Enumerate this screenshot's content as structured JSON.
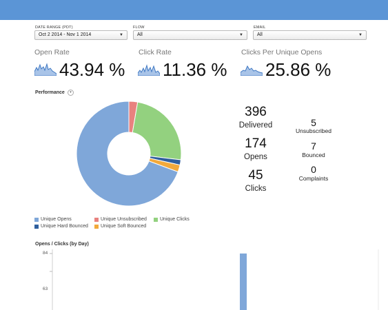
{
  "filters": {
    "date_range": {
      "label": "DATE RANGE (PDT)",
      "value": "Oct 2 2014 - Nov 1 2014"
    },
    "flow": {
      "label": "FLOW",
      "value": "All"
    },
    "email": {
      "label": "EMAIL",
      "value": "All"
    }
  },
  "metrics": [
    {
      "title": "Open Rate",
      "value": "43.94 %"
    },
    {
      "title": "Click Rate",
      "value": "11.36 %"
    },
    {
      "title": "Clicks Per Unique Opens",
      "value": "25.86 %"
    }
  ],
  "performance": {
    "title": "Performance",
    "toggle_icon": "chevron-down-icon",
    "stats": {
      "delivered": {
        "value": "396",
        "label": "Delivered"
      },
      "opens": {
        "value": "174",
        "label": "Opens"
      },
      "clicks": {
        "value": "45",
        "label": "Clicks"
      },
      "unsubscribed": {
        "value": "5",
        "label": "Unsubscribed"
      },
      "bounced": {
        "value": "7",
        "label": "Bounced"
      },
      "complaints": {
        "value": "0",
        "label": "Complaints"
      }
    },
    "chart_data": {
      "type": "pie",
      "title": "",
      "slices": [
        {
          "label": "Unique Opens",
          "value": 129,
          "color": "#7fa7d9"
        },
        {
          "label": "Unique Unsubscribed",
          "value": 5,
          "color": "#e8827f"
        },
        {
          "label": "Unique Clicks",
          "value": 45,
          "color": "#93d17f"
        },
        {
          "label": "Unique Hard Bounced",
          "value": 3,
          "color": "#2f5f9e"
        },
        {
          "label": "Unique Soft Bounced",
          "value": 4,
          "color": "#f2a93b"
        }
      ]
    }
  },
  "opens_clicks": {
    "title": "Opens / Clicks (by Day)",
    "chart_data": {
      "type": "bar",
      "y_ticks": [
        "84",
        "63"
      ],
      "ylim": [
        0,
        84
      ],
      "series": [
        {
          "values": [
            84
          ],
          "color": "#7fa7d9"
        }
      ]
    }
  },
  "colors": {
    "topbar": "#5b95d6"
  }
}
